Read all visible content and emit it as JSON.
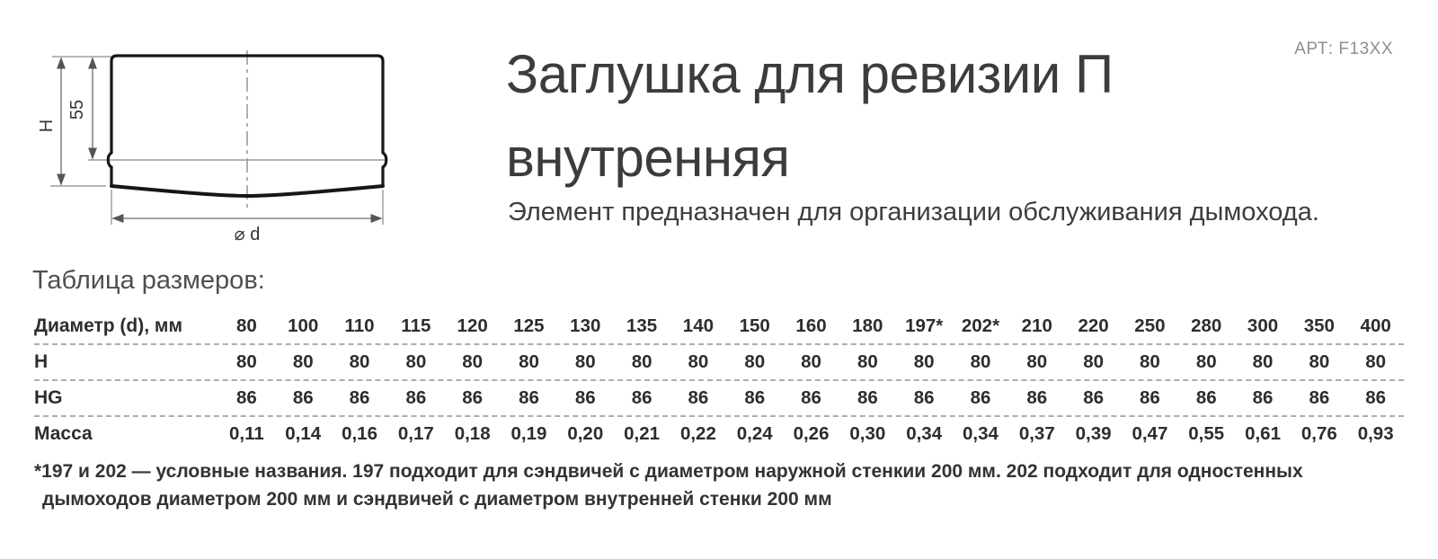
{
  "header": {
    "art_label": "АРТ: F13XX",
    "title_lines": [
      "Заглушка для ревизии П",
      "внутренняя"
    ],
    "subtitle": "Элемент предназначен для организации обслуживания дымохода."
  },
  "diagram": {
    "height_total_label": "H",
    "height_top_label": "55",
    "diameter_label": "⌀ d"
  },
  "sizes": {
    "heading": "Таблица размеров:",
    "table": {
      "rows": [
        {
          "label": "Диаметр (d), мм",
          "values": [
            "80",
            "100",
            "110",
            "115",
            "120",
            "125",
            "130",
            "135",
            "140",
            "150",
            "160",
            "180",
            "197*",
            "202*",
            "210",
            "220",
            "250",
            "280",
            "300",
            "350",
            "400"
          ]
        },
        {
          "label": "H",
          "values": [
            "80",
            "80",
            "80",
            "80",
            "80",
            "80",
            "80",
            "80",
            "80",
            "80",
            "80",
            "80",
            "80",
            "80",
            "80",
            "80",
            "80",
            "80",
            "80",
            "80",
            "80"
          ]
        },
        {
          "label": "HG",
          "values": [
            "86",
            "86",
            "86",
            "86",
            "86",
            "86",
            "86",
            "86",
            "86",
            "86",
            "86",
            "86",
            "86",
            "86",
            "86",
            "86",
            "86",
            "86",
            "86",
            "86",
            "86"
          ]
        },
        {
          "label": "Масса",
          "values": [
            "0,11",
            "0,14",
            "0,16",
            "0,17",
            "0,18",
            "0,19",
            "0,20",
            "0,21",
            "0,22",
            "0,24",
            "0,26",
            "0,30",
            "0,34",
            "0,34",
            "0,37",
            "0,39",
            "0,47",
            "0,55",
            "0,61",
            "0,76",
            "0,93"
          ]
        }
      ]
    },
    "footnote_lines": [
      "*197 и 202 — условные названия. 197 подходит для сэндвичей с диаметром наружной стенкии 200 мм. 202 подходит для одностенных",
      "дымоходов диаметром 200 мм и сэндвичей с диаметром внутренней стенки 200 мм"
    ]
  },
  "colors": {
    "text_dark": "#2d2d2d",
    "text_gray": "#8f8f8f",
    "drawing_line": "#161616",
    "dash_separator": "#adadad"
  }
}
